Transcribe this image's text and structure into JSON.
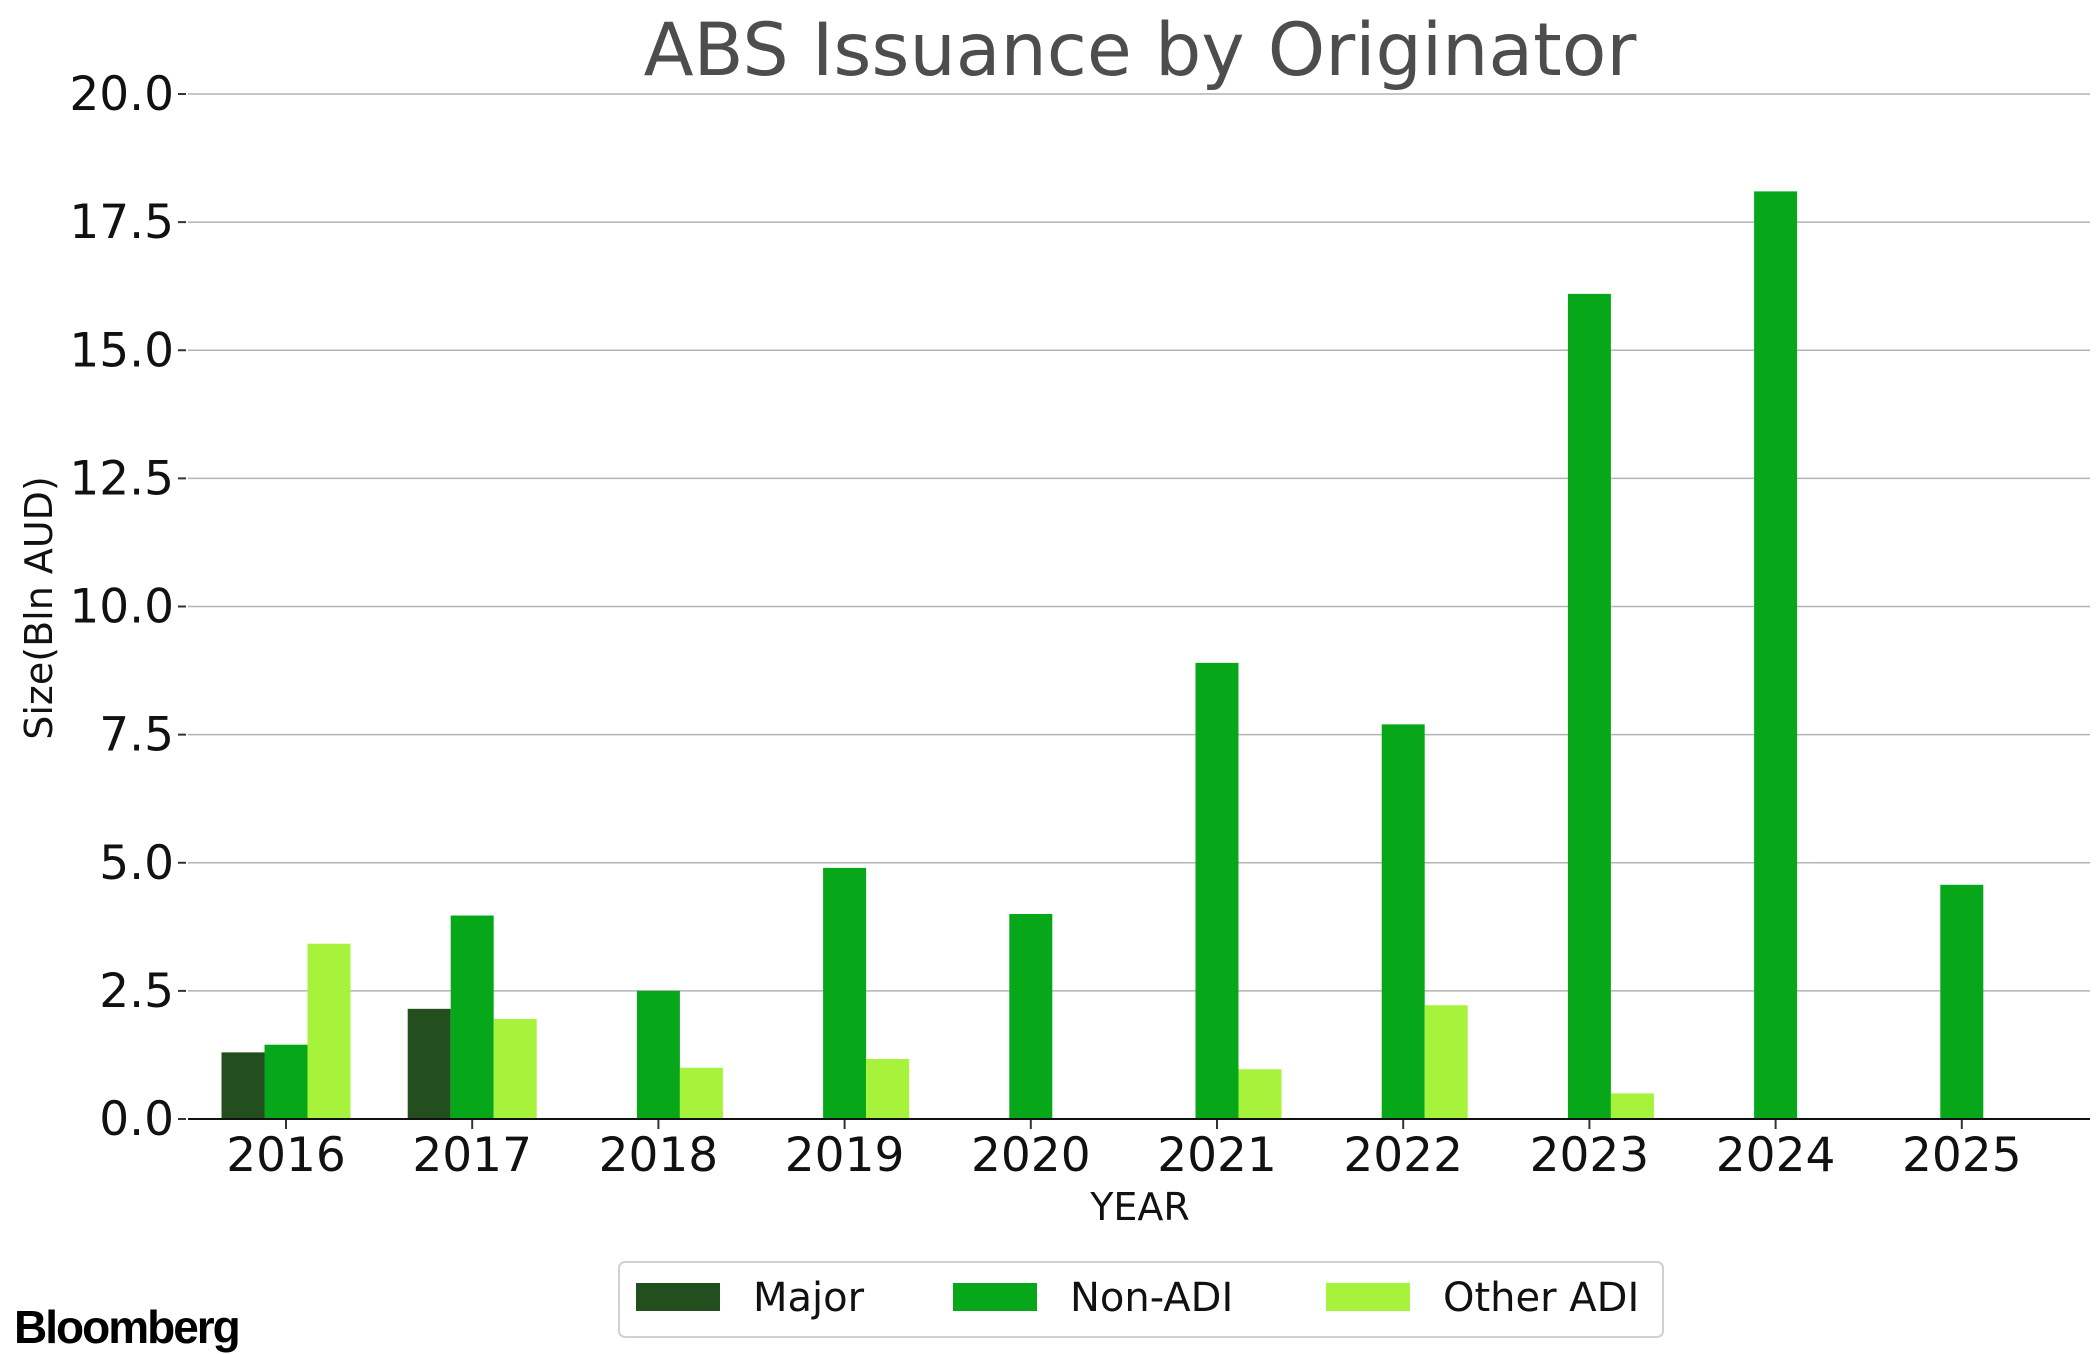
{
  "chart_data": {
    "type": "bar",
    "title": "ABS Issuance by Originator",
    "xlabel": "YEAR",
    "ylabel": "Size(Bln AUD)",
    "categories": [
      "2016",
      "2017",
      "2018",
      "2019",
      "2020",
      "2021",
      "2022",
      "2023",
      "2024",
      "2025"
    ],
    "series": [
      {
        "name": "Major",
        "color": "#234f1e",
        "values": [
          1.3,
          2.15,
          null,
          null,
          null,
          null,
          null,
          null,
          null,
          null
        ]
      },
      {
        "name": "Non-ADI",
        "color": "#06a819",
        "values": [
          1.45,
          3.97,
          2.5,
          4.9,
          4.0,
          8.9,
          7.7,
          16.1,
          18.1,
          4.57
        ]
      },
      {
        "name": "Other ADI",
        "color": "#a7f23a",
        "values": [
          3.42,
          1.95,
          1.0,
          1.17,
          null,
          0.97,
          2.22,
          0.5,
          null,
          null
        ]
      }
    ],
    "ylim": [
      0,
      20
    ],
    "yticks": [
      "0.0",
      "2.5",
      "5.0",
      "7.5",
      "10.0",
      "12.5",
      "15.0",
      "17.5",
      "20.0"
    ],
    "grid": "horizontal",
    "legend_position": "bottom-center"
  },
  "brand": {
    "logo_text": "Bloomberg"
  }
}
